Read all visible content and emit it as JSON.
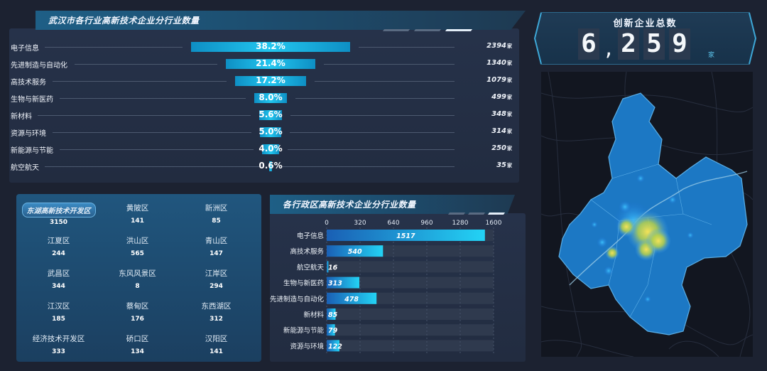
{
  "industry_panel": {
    "title": "武汉市各行业高新技术企业分行业数量",
    "unit": "家",
    "rows": [
      {
        "name": "电子信息",
        "percent_label": "38.2%",
        "percent": 38.2,
        "count": "2394"
      },
      {
        "name": "先进制造与自动化",
        "percent_label": "21.4%",
        "percent": 21.4,
        "count": "1340"
      },
      {
        "name": "高技术服务",
        "percent_label": "17.2%",
        "percent": 17.2,
        "count": "1079"
      },
      {
        "name": "生物与新医药",
        "percent_label": "8.0%",
        "percent": 8.0,
        "count": "499"
      },
      {
        "name": "新材料",
        "percent_label": "5.6%",
        "percent": 5.6,
        "count": "348"
      },
      {
        "name": "资源与环境",
        "percent_label": "5.0%",
        "percent": 5.0,
        "count": "314"
      },
      {
        "name": "新能源与节能",
        "percent_label": "4.0%",
        "percent": 4.0,
        "count": "250"
      },
      {
        "name": "航空航天",
        "percent_label": "0.6%",
        "percent": 0.6,
        "count": "35"
      }
    ]
  },
  "total_panel": {
    "title": "创新企业总数",
    "digits": [
      "6",
      ",",
      "2",
      "5",
      "9"
    ],
    "unit": "家"
  },
  "district_panel": {
    "districts": [
      {
        "name": "东湖高新技术开发区",
        "value": "3150",
        "highlight": true
      },
      {
        "name": "黄陂区",
        "value": "141"
      },
      {
        "name": "新洲区",
        "value": "85"
      },
      {
        "name": "江夏区",
        "value": "244"
      },
      {
        "name": "洪山区",
        "value": "565"
      },
      {
        "name": "青山区",
        "value": "147"
      },
      {
        "name": "武昌区",
        "value": "344"
      },
      {
        "name": "东风风景区",
        "value": "8"
      },
      {
        "name": "江岸区",
        "value": "294"
      },
      {
        "name": "江汉区",
        "value": "185"
      },
      {
        "name": "蔡甸区",
        "value": "176"
      },
      {
        "name": "东西湖区",
        "value": "312"
      },
      {
        "name": "经济技术开发区",
        "value": "333"
      },
      {
        "name": "硚口区",
        "value": "134"
      },
      {
        "name": "汉阳区",
        "value": "141"
      }
    ]
  },
  "chart_panel": {
    "title": "各行政区高新技术企业分行业数量"
  },
  "chart_data": {
    "type": "bar",
    "orientation": "horizontal",
    "categories": [
      "电子信息",
      "高技术服务",
      "航空航天",
      "生物与新医药",
      "先进制造与自动化",
      "新材料",
      "新能源与节能",
      "资源与环境"
    ],
    "values": [
      1517,
      540,
      16,
      313,
      478,
      85,
      79,
      122
    ],
    "x_ticks": [
      0,
      320,
      640,
      960,
      1280,
      1600
    ],
    "xlim": [
      0,
      1600
    ],
    "grid": true,
    "colors": {
      "bar_start": "#1a5fb4",
      "bar_end": "#23d3f5",
      "track": "#2f3a4e"
    }
  },
  "colors": {
    "accent": "#22c6ef",
    "panel": "#222c40",
    "background": "#1c2231"
  }
}
